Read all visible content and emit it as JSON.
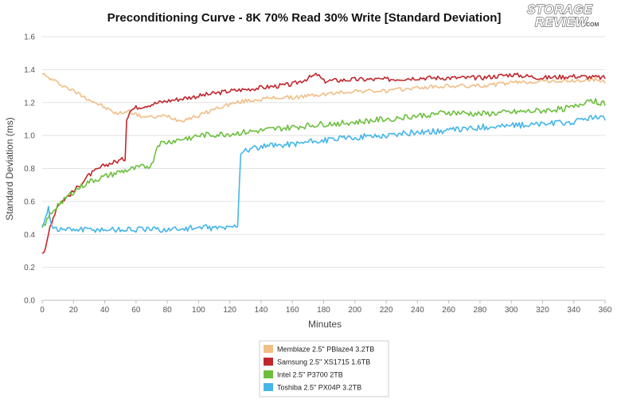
{
  "chart_data": {
    "type": "line",
    "title": "Preconditioning Curve - 8K 70% Read 30% Write [Standard Deviation]",
    "xlabel": "Minutes",
    "ylabel": "Standard Deviation (ms)",
    "xlim": [
      0,
      360
    ],
    "ylim": [
      0,
      1.6
    ],
    "x_ticks": [
      "0",
      "20",
      "40",
      "60",
      "80",
      "100",
      "120",
      "140",
      "160",
      "180",
      "200",
      "220",
      "240",
      "260",
      "280",
      "300",
      "320",
      "340",
      "360"
    ],
    "y_ticks": [
      "0.0",
      "0.2",
      "0.4",
      "0.6",
      "0.8",
      "1.0",
      "1.2",
      "1.4",
      "1.6"
    ],
    "grid": "horizontal",
    "legend_position": "bottom-center",
    "series": [
      {
        "name": "Memblaze 2.5\" PBlaze4 3.2TB",
        "color": "#f0be86",
        "points": [
          [
            0,
            1.38
          ],
          [
            2,
            1.36
          ],
          [
            10,
            1.32
          ],
          [
            20,
            1.27
          ],
          [
            30,
            1.22
          ],
          [
            40,
            1.17
          ],
          [
            48,
            1.13
          ],
          [
            55,
            1.15
          ],
          [
            62,
            1.12
          ],
          [
            70,
            1.11
          ],
          [
            80,
            1.12
          ],
          [
            88,
            1.09
          ],
          [
            100,
            1.12
          ],
          [
            110,
            1.16
          ],
          [
            120,
            1.19
          ],
          [
            130,
            1.21
          ],
          [
            140,
            1.22
          ],
          [
            150,
            1.23
          ],
          [
            160,
            1.23
          ],
          [
            170,
            1.24
          ],
          [
            180,
            1.25
          ],
          [
            200,
            1.27
          ],
          [
            220,
            1.27
          ],
          [
            240,
            1.29
          ],
          [
            260,
            1.3
          ],
          [
            280,
            1.3
          ],
          [
            300,
            1.32
          ],
          [
            320,
            1.33
          ],
          [
            340,
            1.33
          ],
          [
            355,
            1.34
          ],
          [
            360,
            1.32
          ]
        ]
      },
      {
        "name": "Samsung 2.5\" XS1715 1.6TB",
        "color": "#c0272d",
        "points": [
          [
            0,
            0.29
          ],
          [
            2,
            0.3
          ],
          [
            5,
            0.45
          ],
          [
            10,
            0.58
          ],
          [
            20,
            0.66
          ],
          [
            30,
            0.76
          ],
          [
            40,
            0.82
          ],
          [
            50,
            0.85
          ],
          [
            53,
            0.86
          ],
          [
            54,
            1.1
          ],
          [
            56,
            1.15
          ],
          [
            60,
            1.17
          ],
          [
            70,
            1.19
          ],
          [
            80,
            1.21
          ],
          [
            100,
            1.24
          ],
          [
            120,
            1.27
          ],
          [
            140,
            1.29
          ],
          [
            160,
            1.31
          ],
          [
            176,
            1.37
          ],
          [
            180,
            1.33
          ],
          [
            200,
            1.34
          ],
          [
            220,
            1.34
          ],
          [
            240,
            1.35
          ],
          [
            260,
            1.35
          ],
          [
            280,
            1.35
          ],
          [
            300,
            1.37
          ],
          [
            320,
            1.35
          ],
          [
            340,
            1.36
          ],
          [
            360,
            1.35
          ]
        ]
      },
      {
        "name": "Intel 2.5\" P3700 2TB",
        "color": "#6cbf3d",
        "points": [
          [
            0,
            0.44
          ],
          [
            3,
            0.48
          ],
          [
            5,
            0.52
          ],
          [
            10,
            0.58
          ],
          [
            20,
            0.66
          ],
          [
            30,
            0.72
          ],
          [
            40,
            0.75
          ],
          [
            50,
            0.78
          ],
          [
            60,
            0.8
          ],
          [
            70,
            0.82
          ],
          [
            74,
            0.95
          ],
          [
            80,
            0.96
          ],
          [
            90,
            0.98
          ],
          [
            100,
            1.0
          ],
          [
            120,
            1.01
          ],
          [
            140,
            1.03
          ],
          [
            160,
            1.05
          ],
          [
            180,
            1.07
          ],
          [
            200,
            1.08
          ],
          [
            220,
            1.1
          ],
          [
            240,
            1.12
          ],
          [
            260,
            1.14
          ],
          [
            280,
            1.13
          ],
          [
            300,
            1.14
          ],
          [
            320,
            1.15
          ],
          [
            340,
            1.17
          ],
          [
            350,
            1.22
          ],
          [
            360,
            1.19
          ]
        ]
      },
      {
        "name": "Toshiba 2.5\" PX04P 3.2TB",
        "color": "#45b5e8",
        "points": [
          [
            0,
            0.44
          ],
          [
            4,
            0.57
          ],
          [
            6,
            0.45
          ],
          [
            10,
            0.43
          ],
          [
            20,
            0.43
          ],
          [
            40,
            0.43
          ],
          [
            60,
            0.43
          ],
          [
            80,
            0.43
          ],
          [
            100,
            0.44
          ],
          [
            120,
            0.44
          ],
          [
            125,
            0.46
          ],
          [
            127,
            0.9
          ],
          [
            130,
            0.91
          ],
          [
            140,
            0.93
          ],
          [
            160,
            0.95
          ],
          [
            180,
            0.97
          ],
          [
            200,
            0.99
          ],
          [
            220,
            1.0
          ],
          [
            240,
            1.02
          ],
          [
            260,
            1.03
          ],
          [
            280,
            1.05
          ],
          [
            300,
            1.06
          ],
          [
            320,
            1.07
          ],
          [
            340,
            1.08
          ],
          [
            350,
            1.11
          ],
          [
            360,
            1.1
          ]
        ]
      }
    ]
  },
  "logo": {
    "line1": "STORAGE",
    "line2": "REVIEW",
    "suffix": ".COM"
  }
}
